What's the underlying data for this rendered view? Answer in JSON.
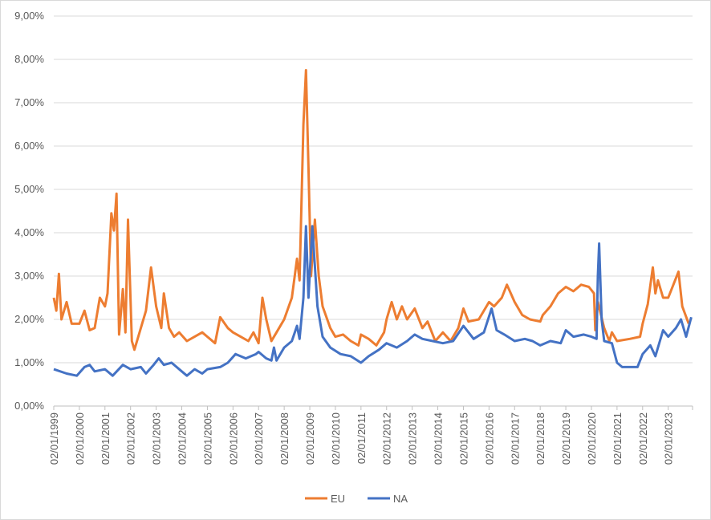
{
  "chart_data": {
    "type": "line",
    "title": "",
    "xlabel": "",
    "ylabel": "",
    "ylim": [
      0,
      9
    ],
    "xlim": [
      1999.0,
      2023.95
    ],
    "grid": true,
    "legend_position": "bottom",
    "y_ticks": [
      "0,00%",
      "1,00%",
      "2,00%",
      "3,00%",
      "4,00%",
      "5,00%",
      "6,00%",
      "7,00%",
      "8,00%",
      "9,00%"
    ],
    "x_ticks": [
      "02/01/1999",
      "02/01/2000",
      "02/01/2001",
      "02/01/2002",
      "02/01/2003",
      "02/01/2004",
      "02/01/2005",
      "02/01/2006",
      "02/01/2007",
      "02/01/2008",
      "02/01/2009",
      "02/01/2010",
      "02/01/2011",
      "02/01/2012",
      "02/01/2013",
      "02/01/2014",
      "02/01/2015",
      "02/01/2016",
      "02/01/2017",
      "02/01/2018",
      "02/01/2019",
      "02/01/2020",
      "02/01/2021",
      "02/01/2022",
      "02/01/2023"
    ],
    "series": [
      {
        "name": "EU",
        "color": "#ED7D31",
        "points": [
          [
            1999.0,
            2.5
          ],
          [
            1999.1,
            2.2
          ],
          [
            1999.2,
            3.05
          ],
          [
            1999.3,
            2.0
          ],
          [
            1999.5,
            2.4
          ],
          [
            1999.7,
            1.9
          ],
          [
            2000.0,
            1.9
          ],
          [
            2000.2,
            2.2
          ],
          [
            2000.4,
            1.75
          ],
          [
            2000.6,
            1.8
          ],
          [
            2000.8,
            2.5
          ],
          [
            2001.0,
            2.3
          ],
          [
            2001.1,
            2.6
          ],
          [
            2001.25,
            4.45
          ],
          [
            2001.35,
            4.05
          ],
          [
            2001.45,
            4.9
          ],
          [
            2001.55,
            1.65
          ],
          [
            2001.7,
            2.7
          ],
          [
            2001.8,
            1.7
          ],
          [
            2001.9,
            4.3
          ],
          [
            2002.05,
            1.5
          ],
          [
            2002.15,
            1.3
          ],
          [
            2002.4,
            1.8
          ],
          [
            2002.6,
            2.2
          ],
          [
            2002.8,
            3.2
          ],
          [
            2003.0,
            2.3
          ],
          [
            2003.2,
            1.8
          ],
          [
            2003.3,
            2.6
          ],
          [
            2003.5,
            1.8
          ],
          [
            2003.7,
            1.6
          ],
          [
            2003.9,
            1.7
          ],
          [
            2004.2,
            1.5
          ],
          [
            2004.5,
            1.6
          ],
          [
            2004.8,
            1.7
          ],
          [
            2005.0,
            1.6
          ],
          [
            2005.3,
            1.45
          ],
          [
            2005.5,
            2.05
          ],
          [
            2005.8,
            1.8
          ],
          [
            2006.0,
            1.7
          ],
          [
            2006.3,
            1.6
          ],
          [
            2006.6,
            1.5
          ],
          [
            2006.8,
            1.7
          ],
          [
            2007.0,
            1.45
          ],
          [
            2007.15,
            2.5
          ],
          [
            2007.3,
            2.0
          ],
          [
            2007.5,
            1.5
          ],
          [
            2007.7,
            1.7
          ],
          [
            2008.0,
            2.0
          ],
          [
            2008.3,
            2.5
          ],
          [
            2008.5,
            3.4
          ],
          [
            2008.6,
            2.9
          ],
          [
            2008.75,
            6.5
          ],
          [
            2008.85,
            7.75
          ],
          [
            2008.95,
            5.5
          ],
          [
            2009.05,
            3.0
          ],
          [
            2009.2,
            4.3
          ],
          [
            2009.35,
            3.0
          ],
          [
            2009.5,
            2.3
          ],
          [
            2009.8,
            1.8
          ],
          [
            2010.0,
            1.6
          ],
          [
            2010.3,
            1.65
          ],
          [
            2010.6,
            1.5
          ],
          [
            2010.9,
            1.4
          ],
          [
            2011.0,
            1.65
          ],
          [
            2011.3,
            1.55
          ],
          [
            2011.6,
            1.4
          ],
          [
            2011.9,
            1.7
          ],
          [
            2012.0,
            2.0
          ],
          [
            2012.2,
            2.4
          ],
          [
            2012.4,
            2.0
          ],
          [
            2012.6,
            2.3
          ],
          [
            2012.8,
            2.0
          ],
          [
            2013.1,
            2.25
          ],
          [
            2013.4,
            1.8
          ],
          [
            2013.6,
            1.95
          ],
          [
            2013.9,
            1.5
          ],
          [
            2014.2,
            1.7
          ],
          [
            2014.5,
            1.5
          ],
          [
            2014.8,
            1.8
          ],
          [
            2015.0,
            2.25
          ],
          [
            2015.2,
            1.95
          ],
          [
            2015.6,
            2.0
          ],
          [
            2016.0,
            2.4
          ],
          [
            2016.2,
            2.3
          ],
          [
            2016.5,
            2.5
          ],
          [
            2016.7,
            2.8
          ],
          [
            2017.0,
            2.4
          ],
          [
            2017.3,
            2.1
          ],
          [
            2017.6,
            2.0
          ],
          [
            2018.0,
            1.95
          ],
          [
            2018.1,
            2.1
          ],
          [
            2018.4,
            2.3
          ],
          [
            2018.7,
            2.6
          ],
          [
            2019.0,
            2.75
          ],
          [
            2019.3,
            2.65
          ],
          [
            2019.6,
            2.8
          ],
          [
            2019.9,
            2.75
          ],
          [
            2020.1,
            2.6
          ],
          [
            2020.15,
            1.75
          ],
          [
            2020.25,
            2.4
          ],
          [
            2020.5,
            1.8
          ],
          [
            2020.7,
            1.5
          ],
          [
            2020.8,
            1.7
          ],
          [
            2021.0,
            1.5
          ],
          [
            2021.5,
            1.55
          ],
          [
            2021.9,
            1.6
          ],
          [
            2022.0,
            1.9
          ],
          [
            2022.2,
            2.35
          ],
          [
            2022.4,
            3.2
          ],
          [
            2022.5,
            2.6
          ],
          [
            2022.6,
            2.9
          ],
          [
            2022.8,
            2.5
          ],
          [
            2023.0,
            2.5
          ],
          [
            2023.2,
            2.8
          ],
          [
            2023.4,
            3.1
          ],
          [
            2023.55,
            2.3
          ],
          [
            2023.8,
            1.9
          ]
        ]
      },
      {
        "name": "NA",
        "color": "#4472C4",
        "points": [
          [
            1999.0,
            0.85
          ],
          [
            1999.5,
            0.75
          ],
          [
            1999.9,
            0.7
          ],
          [
            2000.2,
            0.9
          ],
          [
            2000.4,
            0.95
          ],
          [
            2000.6,
            0.8
          ],
          [
            2001.0,
            0.85
          ],
          [
            2001.3,
            0.7
          ],
          [
            2001.7,
            0.95
          ],
          [
            2002.0,
            0.85
          ],
          [
            2002.4,
            0.9
          ],
          [
            2002.6,
            0.75
          ],
          [
            2002.9,
            0.95
          ],
          [
            2003.1,
            1.1
          ],
          [
            2003.3,
            0.95
          ],
          [
            2003.6,
            1.0
          ],
          [
            2004.0,
            0.8
          ],
          [
            2004.2,
            0.7
          ],
          [
            2004.5,
            0.85
          ],
          [
            2004.8,
            0.75
          ],
          [
            2005.0,
            0.85
          ],
          [
            2005.5,
            0.9
          ],
          [
            2005.8,
            1.0
          ],
          [
            2006.1,
            1.2
          ],
          [
            2006.5,
            1.1
          ],
          [
            2006.9,
            1.2
          ],
          [
            2007.0,
            1.25
          ],
          [
            2007.3,
            1.1
          ],
          [
            2007.5,
            1.05
          ],
          [
            2007.6,
            1.35
          ],
          [
            2007.7,
            1.05
          ],
          [
            2008.0,
            1.35
          ],
          [
            2008.3,
            1.5
          ],
          [
            2008.5,
            1.85
          ],
          [
            2008.6,
            1.55
          ],
          [
            2008.75,
            2.5
          ],
          [
            2008.85,
            4.15
          ],
          [
            2008.95,
            2.5
          ],
          [
            2009.1,
            4.15
          ],
          [
            2009.3,
            2.3
          ],
          [
            2009.5,
            1.6
          ],
          [
            2009.8,
            1.35
          ],
          [
            2010.2,
            1.2
          ],
          [
            2010.6,
            1.15
          ],
          [
            2011.0,
            1.0
          ],
          [
            2011.3,
            1.15
          ],
          [
            2011.7,
            1.3
          ],
          [
            2012.0,
            1.45
          ],
          [
            2012.4,
            1.35
          ],
          [
            2012.8,
            1.5
          ],
          [
            2013.1,
            1.65
          ],
          [
            2013.4,
            1.55
          ],
          [
            2013.8,
            1.5
          ],
          [
            2014.2,
            1.45
          ],
          [
            2014.6,
            1.5
          ],
          [
            2015.0,
            1.85
          ],
          [
            2015.4,
            1.55
          ],
          [
            2015.8,
            1.7
          ],
          [
            2016.1,
            2.25
          ],
          [
            2016.3,
            1.75
          ],
          [
            2016.6,
            1.65
          ],
          [
            2017.0,
            1.5
          ],
          [
            2017.4,
            1.55
          ],
          [
            2017.7,
            1.5
          ],
          [
            2018.0,
            1.4
          ],
          [
            2018.4,
            1.5
          ],
          [
            2018.8,
            1.45
          ],
          [
            2019.0,
            1.75
          ],
          [
            2019.3,
            1.6
          ],
          [
            2019.7,
            1.65
          ],
          [
            2020.0,
            1.6
          ],
          [
            2020.2,
            1.55
          ],
          [
            2020.25,
            3.0
          ],
          [
            2020.3,
            3.75
          ],
          [
            2020.4,
            2.0
          ],
          [
            2020.5,
            1.5
          ],
          [
            2020.8,
            1.45
          ],
          [
            2021.0,
            1.0
          ],
          [
            2021.2,
            0.9
          ],
          [
            2021.8,
            0.9
          ],
          [
            2022.0,
            1.2
          ],
          [
            2022.3,
            1.4
          ],
          [
            2022.5,
            1.15
          ],
          [
            2022.8,
            1.75
          ],
          [
            2023.0,
            1.6
          ],
          [
            2023.3,
            1.8
          ],
          [
            2023.5,
            2.0
          ],
          [
            2023.7,
            1.6
          ],
          [
            2023.9,
            2.05
          ]
        ]
      }
    ]
  }
}
